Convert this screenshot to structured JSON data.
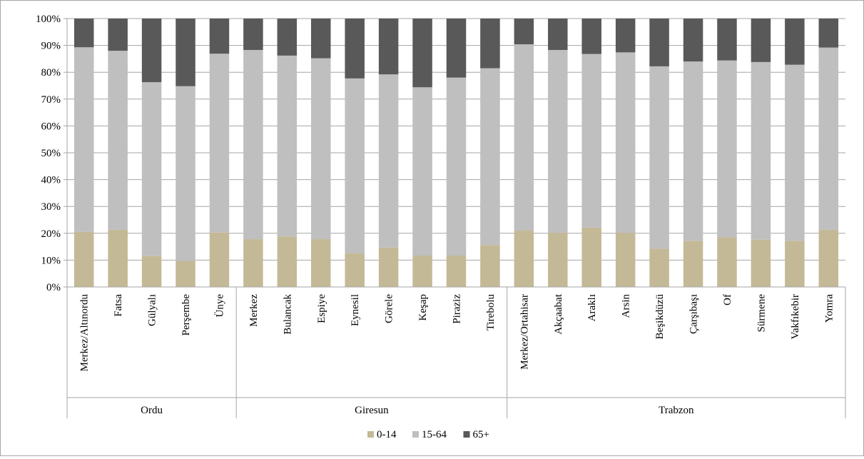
{
  "chart_data": {
    "type": "bar",
    "stacked": true,
    "percent_stacked": true,
    "title": "",
    "xlabel": "",
    "ylabel": "",
    "ylim": [
      0,
      100
    ],
    "y_ticks": [
      "0%",
      "10%",
      "20%",
      "30%",
      "40%",
      "50%",
      "60%",
      "70%",
      "80%",
      "90%",
      "100%"
    ],
    "grid": true,
    "legend_position": "bottom",
    "groups": [
      {
        "name": "Ordu",
        "categories": [
          "Merkez/Altınordu",
          "Fatsa",
          "Gülyalı",
          "Perşembe",
          "Ünye"
        ]
      },
      {
        "name": "Giresun",
        "categories": [
          "Merkez",
          "Bulancak",
          "Espiye",
          "Eynesil",
          "Görele",
          "Keşap",
          "Piraziz",
          "Tirebolu"
        ]
      },
      {
        "name": "Trabzon",
        "categories": [
          "Merkez/Ortahisar",
          "Akçaabat",
          "Araklı",
          "Arsin",
          "Beşikdüzü",
          "Çarşıbaşı",
          "Of",
          "Sürmene",
          "Vakfıkebir",
          "Yomra"
        ]
      }
    ],
    "categories": [
      "Merkez/Altınordu",
      "Fatsa",
      "Gülyalı",
      "Perşembe",
      "Ünye",
      "Merkez",
      "Bulancak",
      "Espiye",
      "Eynesil",
      "Görele",
      "Keşap",
      "Piraziz",
      "Tirebolu",
      "Merkez/Ortahisar",
      "Akçaabat",
      "Araklı",
      "Arsin",
      "Beşikdüzü",
      "Çarşıbaşı",
      "Of",
      "Sürmene",
      "Vakfıkebir",
      "Yomra"
    ],
    "series": [
      {
        "name": "0-14",
        "color": "#c4b996",
        "values": [
          20.5,
          21.3,
          11.5,
          9.7,
          20.3,
          17.8,
          18.8,
          17.8,
          12.6,
          14.7,
          11.7,
          11.7,
          15.6,
          21.0,
          20.2,
          22.1,
          20.2,
          14.3,
          17.2,
          18.5,
          17.6,
          17.2,
          21.3
        ]
      },
      {
        "name": "15-64",
        "color": "#bfbfbf",
        "values": [
          68.8,
          66.7,
          64.8,
          65.1,
          66.6,
          70.5,
          67.4,
          67.4,
          65.1,
          64.5,
          62.7,
          66.3,
          65.9,
          69.4,
          68.1,
          64.7,
          67.2,
          67.9,
          66.8,
          65.9,
          66.2,
          65.6,
          67.9
        ]
      },
      {
        "name": "65+",
        "color": "#595959",
        "values": [
          10.7,
          12.0,
          23.7,
          25.2,
          13.1,
          11.7,
          13.8,
          14.8,
          22.3,
          20.8,
          25.6,
          22.0,
          18.5,
          9.6,
          11.7,
          13.2,
          12.6,
          17.8,
          16.0,
          15.6,
          16.2,
          17.2,
          10.8
        ]
      }
    ]
  }
}
